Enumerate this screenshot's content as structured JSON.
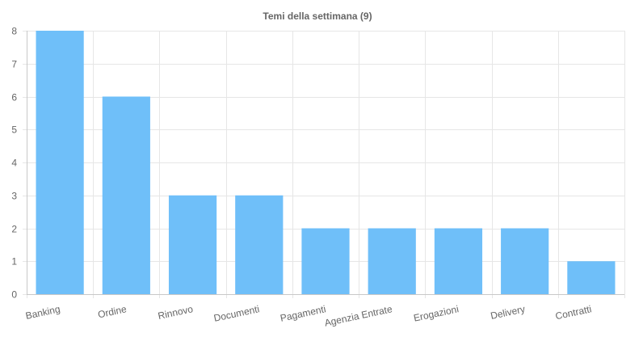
{
  "chart_data": {
    "type": "bar",
    "title": "Temi della settimana (9)",
    "xlabel": "",
    "ylabel": "",
    "categories": [
      "Banking",
      "Ordine",
      "Rinnovo",
      "Documenti",
      "Pagamenti",
      "Agenzia Entrate",
      "Erogazioni",
      "Delivery",
      "Contratti"
    ],
    "values": [
      8,
      6,
      3,
      3,
      2,
      2,
      2,
      2,
      1
    ],
    "ylim": [
      0,
      8
    ],
    "yticks": [
      0,
      1,
      2,
      3,
      4,
      5,
      6,
      7,
      8
    ],
    "grid": true,
    "legend": "none",
    "colors": {
      "bar": "#6fbff9",
      "grid": "#e6e6e6",
      "axis": "#c8c8c8",
      "text": "#666666"
    }
  }
}
